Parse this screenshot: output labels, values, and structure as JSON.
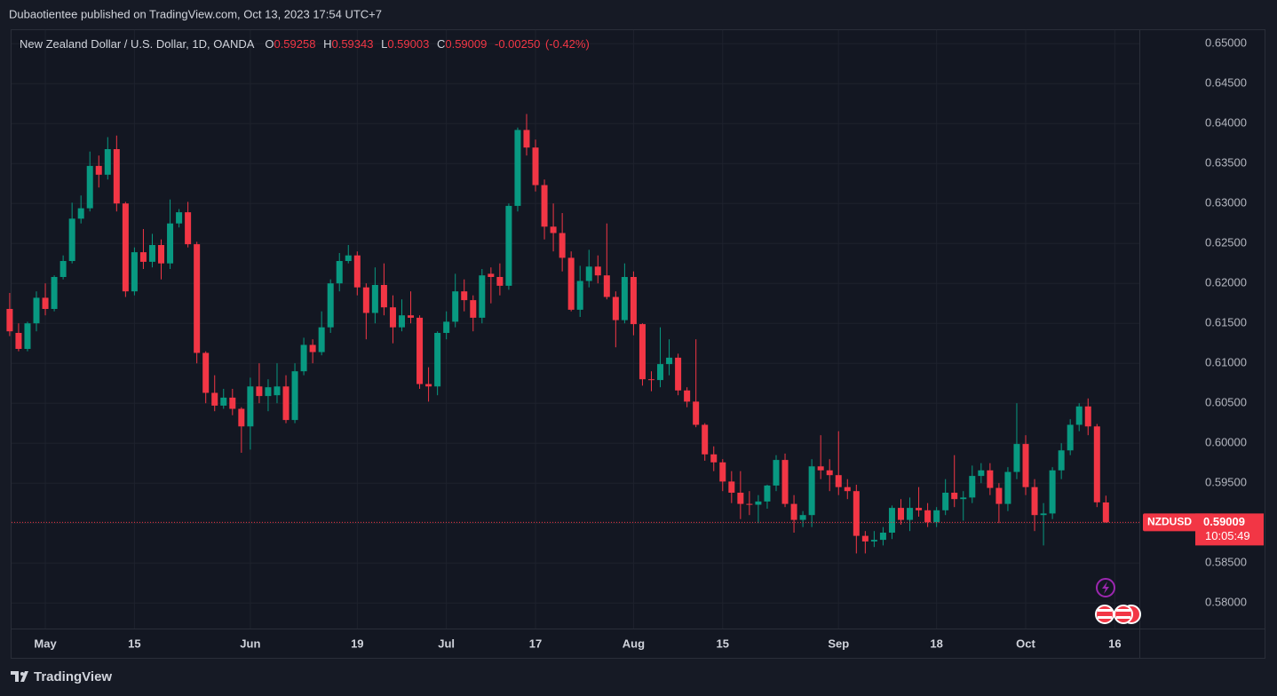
{
  "publisher_line": "Dubaotientee published on TradingView.com, Oct 13, 2023 17:54 UTC+7",
  "brand": "TradingView",
  "chart_data": {
    "type": "candlestick",
    "title": "New Zealand Dollar / U.S. Dollar, 1D, OANDA",
    "symbol": "NZDUSD",
    "countdown": "10:05:49",
    "ohlc_labels": [
      "O",
      "H",
      "L",
      "C"
    ],
    "change": {
      "value": -0.0025,
      "label": "-0.00250"
    },
    "change_pct": {
      "value": -0.42,
      "label": "(-0.42%)"
    },
    "up_color": "#089981",
    "down_color": "#f23645",
    "grid": true,
    "x": [
      "2023-04-25",
      "2023-04-26",
      "2023-04-27",
      "2023-04-28",
      "2023-05-01",
      "2023-05-02",
      "2023-05-03",
      "2023-05-04",
      "2023-05-05",
      "2023-05-08",
      "2023-05-09",
      "2023-05-10",
      "2023-05-11",
      "2023-05-12",
      "2023-05-15",
      "2023-05-16",
      "2023-05-17",
      "2023-05-18",
      "2023-05-19",
      "2023-05-22",
      "2023-05-23",
      "2023-05-24",
      "2023-05-25",
      "2023-05-26",
      "2023-05-29",
      "2023-05-30",
      "2023-05-31",
      "2023-06-01",
      "2023-06-02",
      "2023-06-05",
      "2023-06-06",
      "2023-06-07",
      "2023-06-08",
      "2023-06-09",
      "2023-06-12",
      "2023-06-13",
      "2023-06-14",
      "2023-06-15",
      "2023-06-16",
      "2023-06-19",
      "2023-06-20",
      "2023-06-21",
      "2023-06-22",
      "2023-06-23",
      "2023-06-26",
      "2023-06-27",
      "2023-06-28",
      "2023-06-29",
      "2023-06-30",
      "2023-07-03",
      "2023-07-04",
      "2023-07-05",
      "2023-07-06",
      "2023-07-07",
      "2023-07-10",
      "2023-07-11",
      "2023-07-12",
      "2023-07-13",
      "2023-07-14",
      "2023-07-17",
      "2023-07-18",
      "2023-07-19",
      "2023-07-20",
      "2023-07-21",
      "2023-07-24",
      "2023-07-25",
      "2023-07-26",
      "2023-07-27",
      "2023-07-28",
      "2023-07-31",
      "2023-08-01",
      "2023-08-02",
      "2023-08-03",
      "2023-08-04",
      "2023-08-07",
      "2023-08-08",
      "2023-08-09",
      "2023-08-10",
      "2023-08-11",
      "2023-08-14",
      "2023-08-15",
      "2023-08-16",
      "2023-08-17",
      "2023-08-18",
      "2023-08-21",
      "2023-08-22",
      "2023-08-23",
      "2023-08-24",
      "2023-08-25",
      "2023-08-28",
      "2023-08-29",
      "2023-08-30",
      "2023-08-31",
      "2023-09-01",
      "2023-09-04",
      "2023-09-05",
      "2023-09-06",
      "2023-09-07",
      "2023-09-08",
      "2023-09-11",
      "2023-09-12",
      "2023-09-13",
      "2023-09-14",
      "2023-09-15",
      "2023-09-18",
      "2023-09-19",
      "2023-09-20",
      "2023-09-21",
      "2023-09-22",
      "2023-09-25",
      "2023-09-26",
      "2023-09-27",
      "2023-09-28",
      "2023-09-29",
      "2023-10-02",
      "2023-10-03",
      "2023-10-04",
      "2023-10-05",
      "2023-10-06",
      "2023-10-09",
      "2023-10-10",
      "2023-10-11",
      "2023-10-12",
      "2023-10-13"
    ],
    "open": [
      0.6168,
      0.6138,
      0.6118,
      0.615,
      0.6182,
      0.6168,
      0.6208,
      0.6228,
      0.6281,
      0.6294,
      0.6347,
      0.6336,
      0.6368,
      0.63,
      0.619,
      0.6239,
      0.6227,
      0.6248,
      0.6225,
      0.6275,
      0.6289,
      0.6249,
      0.6113,
      0.6063,
      0.6047,
      0.6057,
      0.6043,
      0.6021,
      0.6071,
      0.6059,
      0.606,
      0.6071,
      0.6029,
      0.609,
      0.6123,
      0.6114,
      0.6145,
      0.62,
      0.6228,
      0.6235,
      0.6195,
      0.6163,
      0.6198,
      0.617,
      0.6145,
      0.616,
      0.6157,
      0.6074,
      0.6071,
      0.6138,
      0.6152,
      0.619,
      0.6179,
      0.6157,
      0.6212,
      0.6208,
      0.6197,
      0.6297,
      0.6392,
      0.637,
      0.6323,
      0.6271,
      0.6263,
      0.6232,
      0.6167,
      0.6203,
      0.6221,
      0.621,
      0.6183,
      0.6154,
      0.6208,
      0.6149,
      0.608,
      0.6079,
      0.6099,
      0.6107,
      0.6066,
      0.6052,
      0.6023,
      0.5986,
      0.5976,
      0.5952,
      0.5938,
      0.5924,
      0.5923,
      0.5927,
      0.5947,
      0.5979,
      0.5924,
      0.5904,
      0.591,
      0.5971,
      0.5966,
      0.596,
      0.5945,
      0.594,
      0.5884,
      0.5877,
      0.5879,
      0.5888,
      0.5919,
      0.5904,
      0.5919,
      0.5916,
      0.5901,
      0.5916,
      0.5938,
      0.593,
      0.5932,
      0.5959,
      0.5966,
      0.5944,
      0.5924,
      0.5964,
      0.5999,
      0.5945,
      0.591,
      0.5912,
      0.5966,
      0.5991,
      0.6023,
      0.6046,
      0.6021,
      0.59258
    ],
    "high": [
      0.6188,
      0.615,
      0.6152,
      0.619,
      0.62,
      0.621,
      0.6235,
      0.6301,
      0.631,
      0.6365,
      0.636,
      0.6383,
      0.6385,
      0.6302,
      0.6245,
      0.6268,
      0.6262,
      0.6255,
      0.6305,
      0.6293,
      0.6302,
      0.6252,
      0.6115,
      0.6085,
      0.6068,
      0.6068,
      0.6045,
      0.6082,
      0.61,
      0.608,
      0.61,
      0.6085,
      0.61,
      0.6132,
      0.613,
      0.6165,
      0.6205,
      0.6238,
      0.6248,
      0.624,
      0.62,
      0.622,
      0.6225,
      0.6185,
      0.618,
      0.619,
      0.616,
      0.6095,
      0.614,
      0.6165,
      0.6212,
      0.6205,
      0.6185,
      0.6218,
      0.622,
      0.6225,
      0.63,
      0.6395,
      0.6412,
      0.638,
      0.633,
      0.63,
      0.6288,
      0.624,
      0.6222,
      0.6242,
      0.6235,
      0.6275,
      0.619,
      0.6225,
      0.6215,
      0.615,
      0.609,
      0.6145,
      0.613,
      0.6112,
      0.607,
      0.613,
      0.6025,
      0.5996,
      0.598,
      0.5965,
      0.5965,
      0.594,
      0.5935,
      0.5948,
      0.5985,
      0.5987,
      0.5935,
      0.5915,
      0.598,
      0.601,
      0.598,
      0.6015,
      0.5955,
      0.5948,
      0.589,
      0.589,
      0.5895,
      0.5922,
      0.593,
      0.5932,
      0.5945,
      0.5925,
      0.592,
      0.5955,
      0.5985,
      0.594,
      0.5972,
      0.5975,
      0.5975,
      0.595,
      0.597,
      0.605,
      0.601,
      0.5955,
      0.5925,
      0.597,
      0.6,
      0.603,
      0.605,
      0.6056,
      0.6024,
      0.59343
    ],
    "low": [
      0.6134,
      0.6115,
      0.6115,
      0.614,
      0.616,
      0.6165,
      0.6205,
      0.6225,
      0.6275,
      0.629,
      0.632,
      0.633,
      0.629,
      0.6183,
      0.6185,
      0.6218,
      0.622,
      0.6205,
      0.6218,
      0.627,
      0.6245,
      0.61,
      0.605,
      0.604,
      0.6043,
      0.6035,
      0.5988,
      0.5992,
      0.605,
      0.604,
      0.605,
      0.6025,
      0.6025,
      0.6085,
      0.61,
      0.611,
      0.6138,
      0.619,
      0.6225,
      0.6185,
      0.613,
      0.615,
      0.616,
      0.6125,
      0.614,
      0.615,
      0.6068,
      0.6052,
      0.606,
      0.613,
      0.6145,
      0.6165,
      0.614,
      0.615,
      0.6175,
      0.6185,
      0.6192,
      0.629,
      0.636,
      0.6315,
      0.6255,
      0.624,
      0.6215,
      0.6165,
      0.6158,
      0.6195,
      0.62,
      0.618,
      0.612,
      0.615,
      0.6135,
      0.6072,
      0.6065,
      0.607,
      0.6085,
      0.606,
      0.6045,
      0.602,
      0.5978,
      0.5965,
      0.594,
      0.5925,
      0.5905,
      0.591,
      0.59,
      0.5918,
      0.594,
      0.592,
      0.5888,
      0.5895,
      0.5895,
      0.5955,
      0.594,
      0.5935,
      0.593,
      0.5862,
      0.5862,
      0.587,
      0.5872,
      0.588,
      0.5898,
      0.589,
      0.5908,
      0.5895,
      0.5895,
      0.591,
      0.592,
      0.5903,
      0.5925,
      0.595,
      0.5935,
      0.59,
      0.5915,
      0.5955,
      0.5935,
      0.589,
      0.5872,
      0.5905,
      0.5955,
      0.5985,
      0.6015,
      0.601,
      0.592,
      0.59003
    ],
    "close": [
      0.614,
      0.6118,
      0.615,
      0.6182,
      0.6168,
      0.6208,
      0.6228,
      0.6281,
      0.6294,
      0.6347,
      0.6336,
      0.6368,
      0.63,
      0.619,
      0.6239,
      0.6227,
      0.6248,
      0.6225,
      0.6275,
      0.6289,
      0.6249,
      0.6113,
      0.6063,
      0.6047,
      0.6057,
      0.6043,
      0.6021,
      0.6071,
      0.6059,
      0.607,
      0.6071,
      0.6029,
      0.609,
      0.6123,
      0.6114,
      0.6145,
      0.62,
      0.6228,
      0.6235,
      0.6195,
      0.6163,
      0.6198,
      0.617,
      0.6145,
      0.616,
      0.6157,
      0.6074,
      0.6071,
      0.6138,
      0.6152,
      0.619,
      0.6179,
      0.6157,
      0.621,
      0.6208,
      0.6197,
      0.6297,
      0.6392,
      0.637,
      0.6323,
      0.6271,
      0.6263,
      0.6232,
      0.6167,
      0.6203,
      0.6221,
      0.621,
      0.6183,
      0.6154,
      0.6208,
      0.6149,
      0.608,
      0.6079,
      0.6099,
      0.6107,
      0.6066,
      0.6052,
      0.6023,
      0.5986,
      0.5976,
      0.5952,
      0.5938,
      0.5924,
      0.5923,
      0.5927,
      0.5947,
      0.5979,
      0.5924,
      0.5904,
      0.591,
      0.5971,
      0.5966,
      0.596,
      0.5945,
      0.594,
      0.5884,
      0.5877,
      0.5879,
      0.5888,
      0.5919,
      0.5904,
      0.5919,
      0.5916,
      0.5901,
      0.5916,
      0.5938,
      0.593,
      0.5932,
      0.5959,
      0.5966,
      0.5944,
      0.5924,
      0.5964,
      0.5999,
      0.5945,
      0.591,
      0.5912,
      0.5966,
      0.5991,
      0.6023,
      0.6046,
      0.6021,
      0.5926,
      0.59009
    ],
    "ylim": [
      0.5768,
      0.6518
    ],
    "yticks": [
      {
        "value": 0.58,
        "label": "0.58000"
      },
      {
        "value": 0.585,
        "label": "0.58500"
      },
      {
        "value": 0.59,
        "label": "0.59000"
      },
      {
        "value": 0.595,
        "label": "0.59500"
      },
      {
        "value": 0.6,
        "label": "0.60000"
      },
      {
        "value": 0.605,
        "label": "0.60500"
      },
      {
        "value": 0.61,
        "label": "0.61000"
      },
      {
        "value": 0.615,
        "label": "0.61500"
      },
      {
        "value": 0.62,
        "label": "0.62000"
      },
      {
        "value": 0.625,
        "label": "0.62500"
      },
      {
        "value": 0.63,
        "label": "0.63000"
      },
      {
        "value": 0.635,
        "label": "0.63500"
      },
      {
        "value": 0.64,
        "label": "0.64000"
      },
      {
        "value": 0.645,
        "label": "0.64500"
      },
      {
        "value": 0.65,
        "label": "0.65000"
      }
    ],
    "xticks": [
      {
        "value": "2023-05-01",
        "label": "May"
      },
      {
        "value": "2023-05-15",
        "label": "15"
      },
      {
        "value": "2023-06-01",
        "label": "Jun"
      },
      {
        "value": "2023-06-19",
        "label": "19"
      },
      {
        "value": "2023-07-03",
        "label": "Jul"
      },
      {
        "value": "2023-07-17",
        "label": "17"
      },
      {
        "value": "2023-08-01",
        "label": "Aug"
      },
      {
        "value": "2023-08-15",
        "label": "15"
      },
      {
        "value": "2023-09-01",
        "label": "Sep"
      },
      {
        "value": "2023-09-18",
        "label": "18"
      },
      {
        "value": "2023-10-02",
        "label": "Oct"
      },
      {
        "value": "2023-10-16",
        "label": "16"
      }
    ]
  }
}
